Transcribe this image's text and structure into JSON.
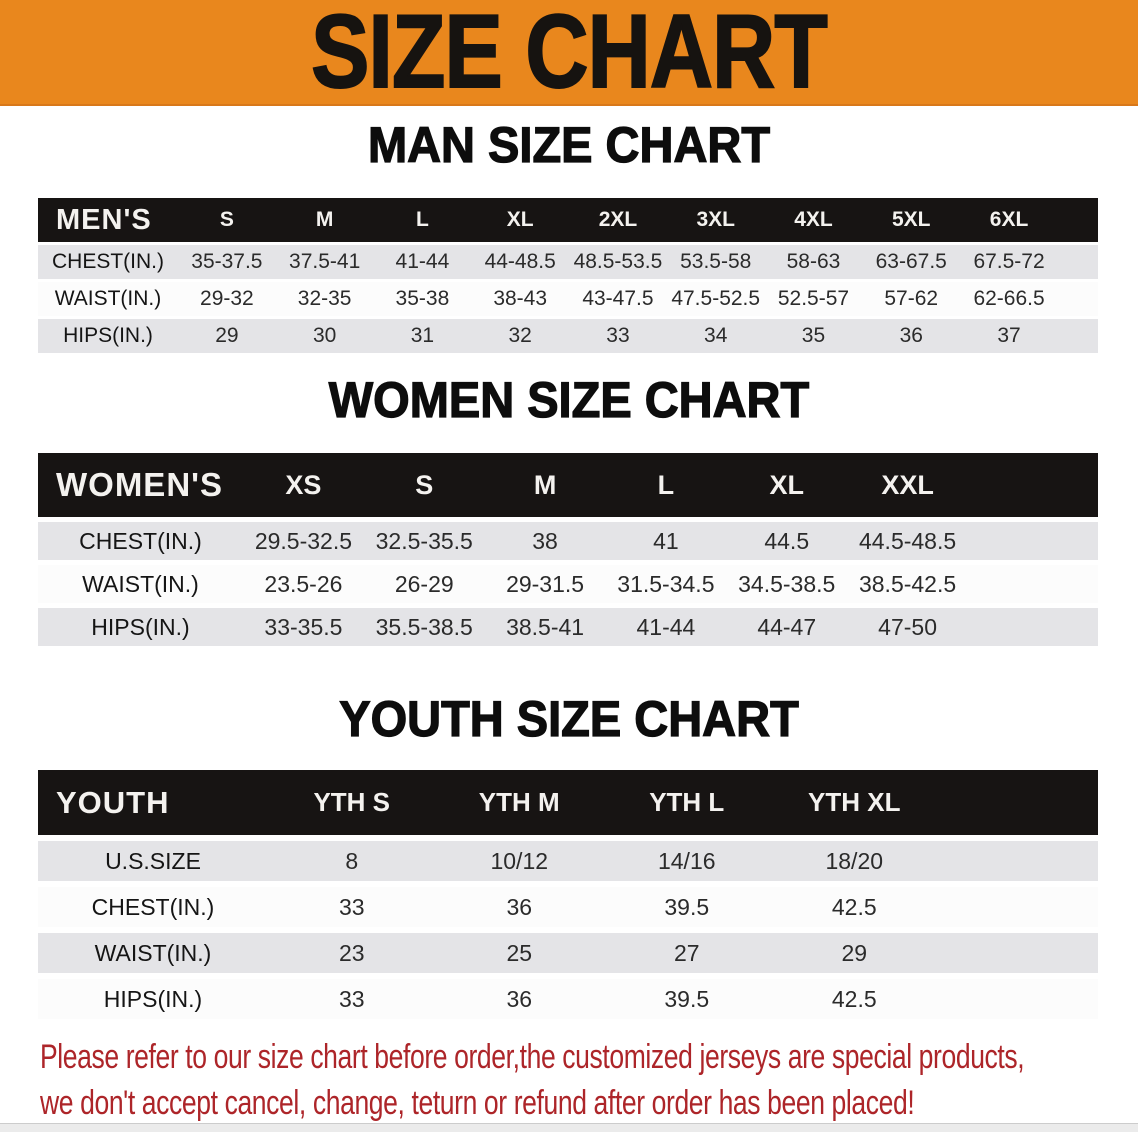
{
  "banner": {
    "title": "SIZE CHART"
  },
  "sections": [
    {
      "title": "MAN SIZE CHART",
      "table": {
        "header": [
          "MEN'S",
          "S",
          "M",
          "L",
          "XL",
          "2XL",
          "3XL",
          "4XL",
          "5XL",
          "6XL"
        ],
        "rows": [
          [
            "CHEST(IN.)",
            "35-37.5",
            "37.5-41",
            "41-44",
            "44-48.5",
            "48.5-53.5",
            "53.5-58",
            "58-63",
            "63-67.5",
            "67.5-72"
          ],
          [
            "WAIST(IN.)",
            "29-32",
            "32-35",
            "35-38",
            "38-43",
            "43-47.5",
            "47.5-52.5",
            "52.5-57",
            "57-62",
            "62-66.5"
          ],
          [
            "HIPS(IN.)",
            "29",
            "30",
            "31",
            "32",
            "33",
            "34",
            "35",
            "36",
            "37"
          ]
        ]
      }
    },
    {
      "title": "WOMEN SIZE CHART",
      "table": {
        "header": [
          "WOMEN'S",
          "XS",
          "S",
          "M",
          "L",
          "XL",
          "XXL"
        ],
        "rows": [
          [
            "CHEST(IN.)",
            "29.5-32.5",
            "32.5-35.5",
            "38",
            "41",
            "44.5",
            "44.5-48.5"
          ],
          [
            "WAIST(IN.)",
            "23.5-26",
            "26-29",
            "29-31.5",
            "31.5-34.5",
            "34.5-38.5",
            "38.5-42.5"
          ],
          [
            "HIPS(IN.)",
            "33-35.5",
            "35.5-38.5",
            "38.5-41",
            "41-44",
            "44-47",
            "47-50"
          ]
        ]
      }
    },
    {
      "title": "YOUTH SIZE CHART",
      "table": {
        "header": [
          "YOUTH",
          "YTH S",
          "YTH M",
          "YTH L",
          "YTH XL"
        ],
        "rows": [
          [
            "U.S.SIZE",
            "8",
            "10/12",
            "14/16",
            "18/20"
          ],
          [
            "CHEST(IN.)",
            "33",
            "36",
            "39.5",
            "42.5"
          ],
          [
            "WAIST(IN.)",
            "23",
            "25",
            "27",
            "29"
          ],
          [
            "HIPS(IN.)",
            "33",
            "36",
            "39.5",
            "42.5"
          ]
        ]
      }
    }
  ],
  "disclaimer": {
    "line1": "Please refer to our size chart before order,the customized jerseys are special products,",
    "line2": "we don't accept cancel, change, teturn or refund after order has been placed!"
  },
  "colors": {
    "banner_bg": "#e9871d",
    "header_bar": "#171413",
    "row_gray": "#e4e4e7",
    "row_white": "#fcfcfc",
    "disclaimer_red": "#ad2529"
  }
}
